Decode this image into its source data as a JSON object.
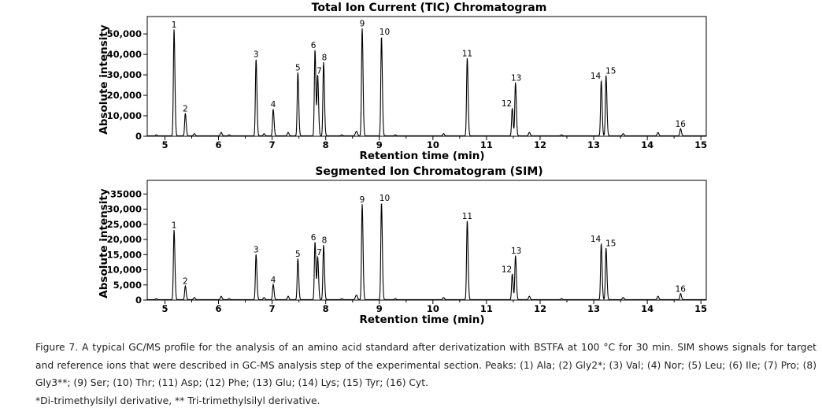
{
  "chart_data": [
    {
      "type": "line",
      "title": "Total Ion Current (TIC) Chromatogram",
      "xlabel": "Retention time (min)",
      "ylabel": "Absolute intensity",
      "xlim": [
        4.67,
        15.1
      ],
      "ylim": [
        0,
        58500
      ],
      "xticks": [
        5,
        6,
        7,
        8,
        9,
        10,
        11,
        12,
        13,
        14,
        15
      ],
      "yticks": [
        0,
        10000,
        20000,
        30000,
        40000,
        50000
      ],
      "ytick_labels": [
        "0",
        "10,000",
        "20,000",
        "30,000",
        "40,000",
        "50,000"
      ],
      "grid": false,
      "peaks": [
        {
          "label": "1",
          "x": 5.17,
          "y": 52000
        },
        {
          "label": "2",
          "x": 5.38,
          "y": 11000
        },
        {
          "label": "3",
          "x": 6.7,
          "y": 37500
        },
        {
          "label": "4",
          "x": 7.02,
          "y": 13000
        },
        {
          "label": "5",
          "x": 7.48,
          "y": 31000
        },
        {
          "label": "6",
          "x": 7.8,
          "y": 42000
        },
        {
          "label": "7",
          "x": 7.85,
          "y": 29500
        },
        {
          "label": "8",
          "x": 7.96,
          "y": 36000
        },
        {
          "label": "9",
          "x": 8.68,
          "y": 52500
        },
        {
          "label": "10",
          "x": 9.04,
          "y": 48500
        },
        {
          "label": "11",
          "x": 10.64,
          "y": 38000
        },
        {
          "label": "12",
          "x": 11.48,
          "y": 13500
        },
        {
          "label": "13",
          "x": 11.54,
          "y": 26000
        },
        {
          "label": "14",
          "x": 13.14,
          "y": 27000
        },
        {
          "label": "15",
          "x": 13.23,
          "y": 29500
        },
        {
          "label": "16",
          "x": 14.62,
          "y": 3500
        }
      ]
    },
    {
      "type": "line",
      "title": "Segmented Ion Chromatogram (SIM)",
      "xlabel": "Retention time (min)",
      "ylabel": "Absolute intensity",
      "xlim": [
        4.67,
        15.1
      ],
      "ylim": [
        0,
        39500
      ],
      "xticks": [
        5,
        6,
        7,
        8,
        9,
        10,
        11,
        12,
        13,
        14,
        15
      ],
      "yticks": [
        0,
        5000,
        10000,
        15000,
        20000,
        25000,
        30000,
        35000
      ],
      "ytick_labels": [
        "0",
        "5,000",
        "10,000",
        "15,000",
        "20,000",
        "25,000",
        "30,000",
        "35000"
      ],
      "grid": false,
      "peaks": [
        {
          "label": "1",
          "x": 5.17,
          "y": 23000
        },
        {
          "label": "2",
          "x": 5.38,
          "y": 4500
        },
        {
          "label": "3",
          "x": 6.7,
          "y": 15000
        },
        {
          "label": "4",
          "x": 7.02,
          "y": 5000
        },
        {
          "label": "5",
          "x": 7.48,
          "y": 13500
        },
        {
          "label": "6",
          "x": 7.8,
          "y": 19000
        },
        {
          "label": "7",
          "x": 7.85,
          "y": 14000
        },
        {
          "label": "8",
          "x": 7.96,
          "y": 18000
        },
        {
          "label": "9",
          "x": 8.68,
          "y": 31500
        },
        {
          "label": "10",
          "x": 9.04,
          "y": 32000
        },
        {
          "label": "11",
          "x": 10.64,
          "y": 26000
        },
        {
          "label": "12",
          "x": 11.48,
          "y": 8500
        },
        {
          "label": "13",
          "x": 11.54,
          "y": 14500
        },
        {
          "label": "14",
          "x": 13.14,
          "y": 18500
        },
        {
          "label": "15",
          "x": 13.23,
          "y": 17000
        },
        {
          "label": "16",
          "x": 14.62,
          "y": 2000
        }
      ]
    }
  ],
  "caption": {
    "text": "Figure 7. A typical GC/MS profile for the analysis of an amino acid standard after derivatization with BSTFA at 100 °C for 30 min. SIM shows signals for target and reference ions that were described in GC-MS analysis step of the experimental section. Peaks: (1) Ala; (2) Gly2*; (3) Val; (4) Nor; (5) Leu; (6) Ile; (7) Pro; (8) Gly3**; (9) Ser; (10) Thr; (11) Asp; (12) Phe; (13) Glu; (14) Lys; (15) Tyr; (16) Cyt.",
    "footnote": "*Di-trimethylsilyl derivative, ** Tri-trimethylsilyl derivative."
  }
}
